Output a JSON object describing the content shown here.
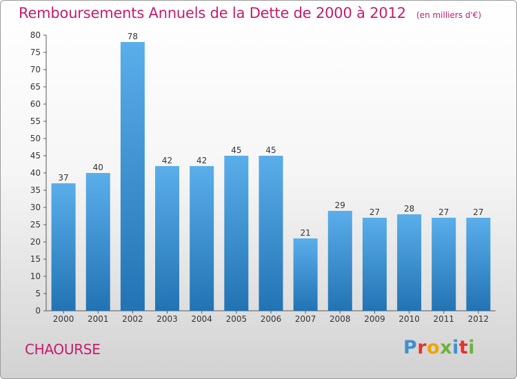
{
  "header": {
    "title": "Remboursements Annuels de la Dette de 2000 à 2012",
    "unit": "(en milliers d'€)"
  },
  "footer": {
    "place": "CHAOURSE",
    "logo": [
      "P",
      "r",
      "o",
      "x",
      "i",
      "t",
      "i"
    ]
  },
  "colors": {
    "accent": "#c71b6b",
    "bar_top": "#5aaeea",
    "bar_bottom": "#2273b3",
    "logo_letters": [
      "#3f8fd2",
      "#e8312a",
      "#f0a400",
      "#6cb33e",
      "#3f8fd2",
      "#e8312a",
      "#6cb33e"
    ]
  },
  "chart_data": {
    "type": "bar",
    "categories": [
      "2000",
      "2001",
      "2002",
      "2003",
      "2004",
      "2005",
      "2006",
      "2007",
      "2008",
      "2009",
      "2010",
      "2011",
      "2012"
    ],
    "values": [
      37,
      40,
      78,
      42,
      42,
      45,
      45,
      21,
      29,
      27,
      28,
      27,
      27
    ],
    "title": "Remboursements Annuels de la Dette de 2000 à 2012",
    "ylim": [
      0,
      80
    ],
    "yticks": [
      0,
      5,
      10,
      15,
      20,
      25,
      30,
      35,
      40,
      45,
      50,
      55,
      60,
      65,
      70,
      75,
      80
    ],
    "grid": false,
    "show_value_labels": true
  }
}
